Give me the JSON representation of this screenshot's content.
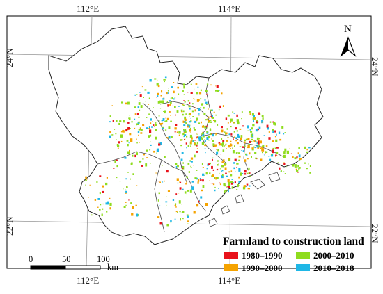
{
  "map": {
    "lon_labels": [
      "112°E",
      "114°E"
    ],
    "lat_labels": [
      "24°N",
      "22°N"
    ],
    "north_label": "N",
    "legend": {
      "title": "Farmland to construction land",
      "items": [
        {
          "label": "1980–1990",
          "color": "#e8121b"
        },
        {
          "label": "2000–2010",
          "color": "#8fdc1e"
        },
        {
          "label": "1990–2000",
          "color": "#f5a300"
        },
        {
          "label": "2010–2018",
          "color": "#1fb7e6"
        }
      ]
    },
    "scale_bar": {
      "ticks": [
        "0",
        "50",
        "100"
      ],
      "unit": "km"
    }
  }
}
